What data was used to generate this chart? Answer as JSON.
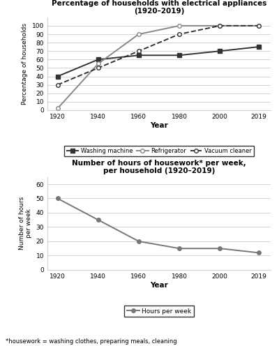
{
  "years": [
    1920,
    1940,
    1960,
    1980,
    2000,
    2019
  ],
  "washing_machine": [
    40,
    60,
    65,
    65,
    70,
    75
  ],
  "refrigerator": [
    2,
    55,
    90,
    100,
    100,
    100
  ],
  "vacuum_cleaner": [
    30,
    50,
    70,
    90,
    100,
    100
  ],
  "hours_per_week": [
    50,
    35,
    20,
    15,
    15,
    12
  ],
  "chart1_title": "Percentage of households with electrical appliances\n(1920–2019)",
  "chart1_ylabel": "Percentage of households",
  "chart1_xlabel": "Year",
  "chart1_ylim": [
    0,
    110
  ],
  "chart1_yticks": [
    0,
    10,
    20,
    30,
    40,
    50,
    60,
    70,
    80,
    90,
    100
  ],
  "chart2_title": "Number of hours of housework* per week,\nper household (1920–2019)",
  "chart2_ylabel": "Number of hours\nper week",
  "chart2_xlabel": "Year",
  "chart2_ylim": [
    0,
    65
  ],
  "chart2_yticks": [
    0,
    10,
    20,
    30,
    40,
    50,
    60
  ],
  "footnote": "*housework = washing clothes, preparing meals, cleaning",
  "line_color_wm": "#333333",
  "line_color_ref": "#888888",
  "line_color_vc": "#333333",
  "line_color_hours": "#777777",
  "legend1_labels": [
    "Washing machine",
    "Refrigerator",
    "Vacuum cleaner"
  ],
  "legend2_label": "Hours per week"
}
